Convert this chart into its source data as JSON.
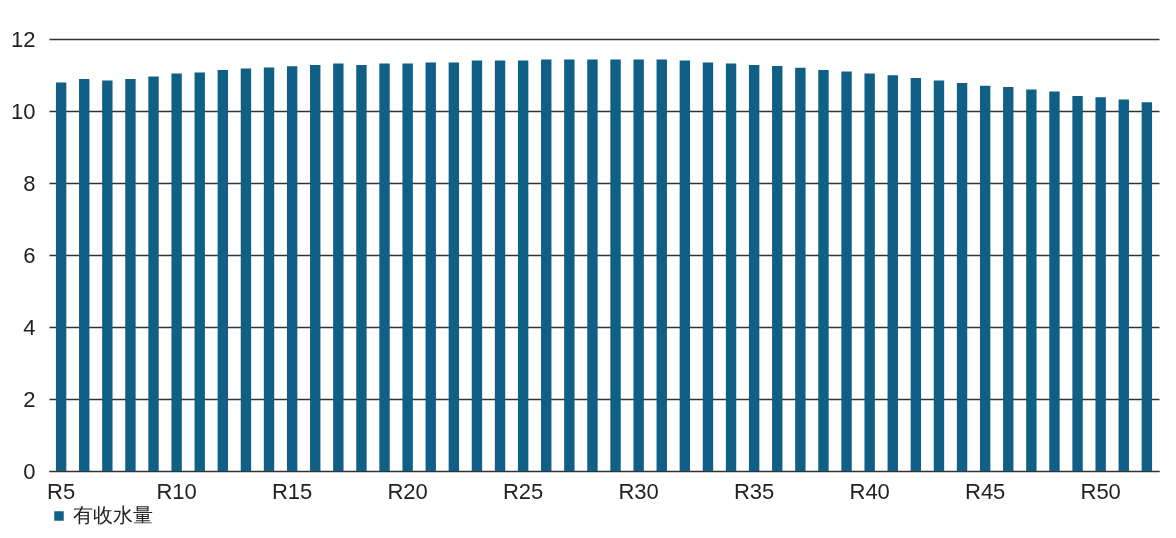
{
  "chart_data": {
    "type": "bar",
    "categories": [
      "R5",
      null,
      null,
      null,
      null,
      "R10",
      null,
      null,
      null,
      null,
      "R15",
      null,
      null,
      null,
      null,
      "R20",
      null,
      null,
      null,
      null,
      "R25",
      null,
      null,
      null,
      null,
      "R30",
      null,
      null,
      null,
      null,
      "R35",
      null,
      null,
      null,
      null,
      "R40",
      null,
      null,
      null,
      null,
      "R45",
      null,
      null,
      null,
      null,
      "R50",
      null,
      null
    ],
    "series": [
      {
        "name": "有收水量",
        "color": "#0f5f86",
        "values": [
          10.79,
          10.89,
          10.85,
          10.89,
          10.96,
          11.04,
          11.07,
          11.14,
          11.18,
          11.21,
          11.24,
          11.28,
          11.32,
          11.28,
          11.32,
          11.32,
          11.35,
          11.35,
          11.4,
          11.4,
          11.4,
          11.43,
          11.43,
          11.43,
          11.43,
          11.43,
          11.43,
          11.4,
          11.35,
          11.32,
          11.28,
          11.25,
          11.2,
          11.14,
          11.1,
          11.04,
          10.99,
          10.92,
          10.85,
          10.78,
          10.7,
          10.67,
          10.6,
          10.54,
          10.42,
          10.38,
          10.32,
          10.24
        ]
      }
    ],
    "ylim": [
      0,
      12
    ],
    "yticks": [
      0,
      2,
      4,
      6,
      8,
      10,
      12
    ],
    "grid": "y",
    "legend": "bottom"
  }
}
